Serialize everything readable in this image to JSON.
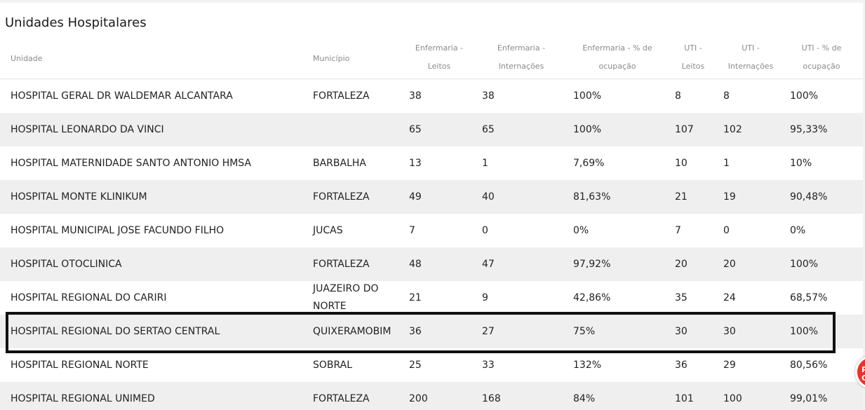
{
  "page": {
    "title": "Unidades Hospitalares"
  },
  "table": {
    "headers": {
      "unidade": "Unidade",
      "municipio": "Município",
      "enf_leitos_1": "Enfermaria -",
      "enf_leitos_2": "Leitos",
      "enf_intern_1": "Enfermaria -",
      "enf_intern_2": "Internações",
      "enf_ocup_1": "Enfermaria - % de",
      "enf_ocup_2": "ocupação",
      "uti_leitos_1": "UTI -",
      "uti_leitos_2": "Leitos",
      "uti_intern_1": "UTI -",
      "uti_intern_2": "Internações",
      "uti_ocup_1": "UTI - % de",
      "uti_ocup_2": "ocupação"
    },
    "rows": [
      [
        "HOSPITAL GERAL DR WALDEMAR ALCANTARA",
        "FORTALEZA",
        "38",
        "38",
        "100%",
        "8",
        "8",
        "100%"
      ],
      [
        "HOSPITAL LEONARDO DA VINCI",
        "",
        "65",
        "65",
        "100%",
        "107",
        "102",
        "95,33%"
      ],
      [
        "HOSPITAL MATERNIDADE SANTO ANTONIO HMSA",
        "BARBALHA",
        "13",
        "1",
        "7,69%",
        "10",
        "1",
        "10%"
      ],
      [
        "HOSPITAL MONTE KLINIKUM",
        "FORTALEZA",
        "49",
        "40",
        "81,63%",
        "21",
        "19",
        "90,48%"
      ],
      [
        "HOSPITAL MUNICIPAL JOSE FACUNDO FILHO",
        "JUCAS",
        "7",
        "0",
        "0%",
        "7",
        "0",
        "0%"
      ],
      [
        "HOSPITAL OTOCLINICA",
        "FORTALEZA",
        "48",
        "47",
        "97,92%",
        "20",
        "20",
        "100%"
      ],
      [
        "HOSPITAL REGIONAL DO CARIRI",
        "JUAZEIRO DO NORTE",
        "21",
        "9",
        "42,86%",
        "35",
        "24",
        "68,57%"
      ],
      [
        "HOSPITAL REGIONAL DO SERTAO CENTRAL",
        "QUIXERAMOBIM",
        "36",
        "27",
        "75%",
        "30",
        "30",
        "100%"
      ],
      [
        "HOSPITAL REGIONAL NORTE",
        "SOBRAL",
        "25",
        "33",
        "132%",
        "36",
        "29",
        "80,56%"
      ],
      [
        "HOSPITAL REGIONAL UNIMED",
        "FORTALEZA",
        "200",
        "168",
        "84%",
        "101",
        "100",
        "99,01%"
      ]
    ],
    "highlighted_row_index": 7
  },
  "badge": {
    "text_line1": "P",
    "text_line2": "C",
    "color": "#e8332b"
  }
}
